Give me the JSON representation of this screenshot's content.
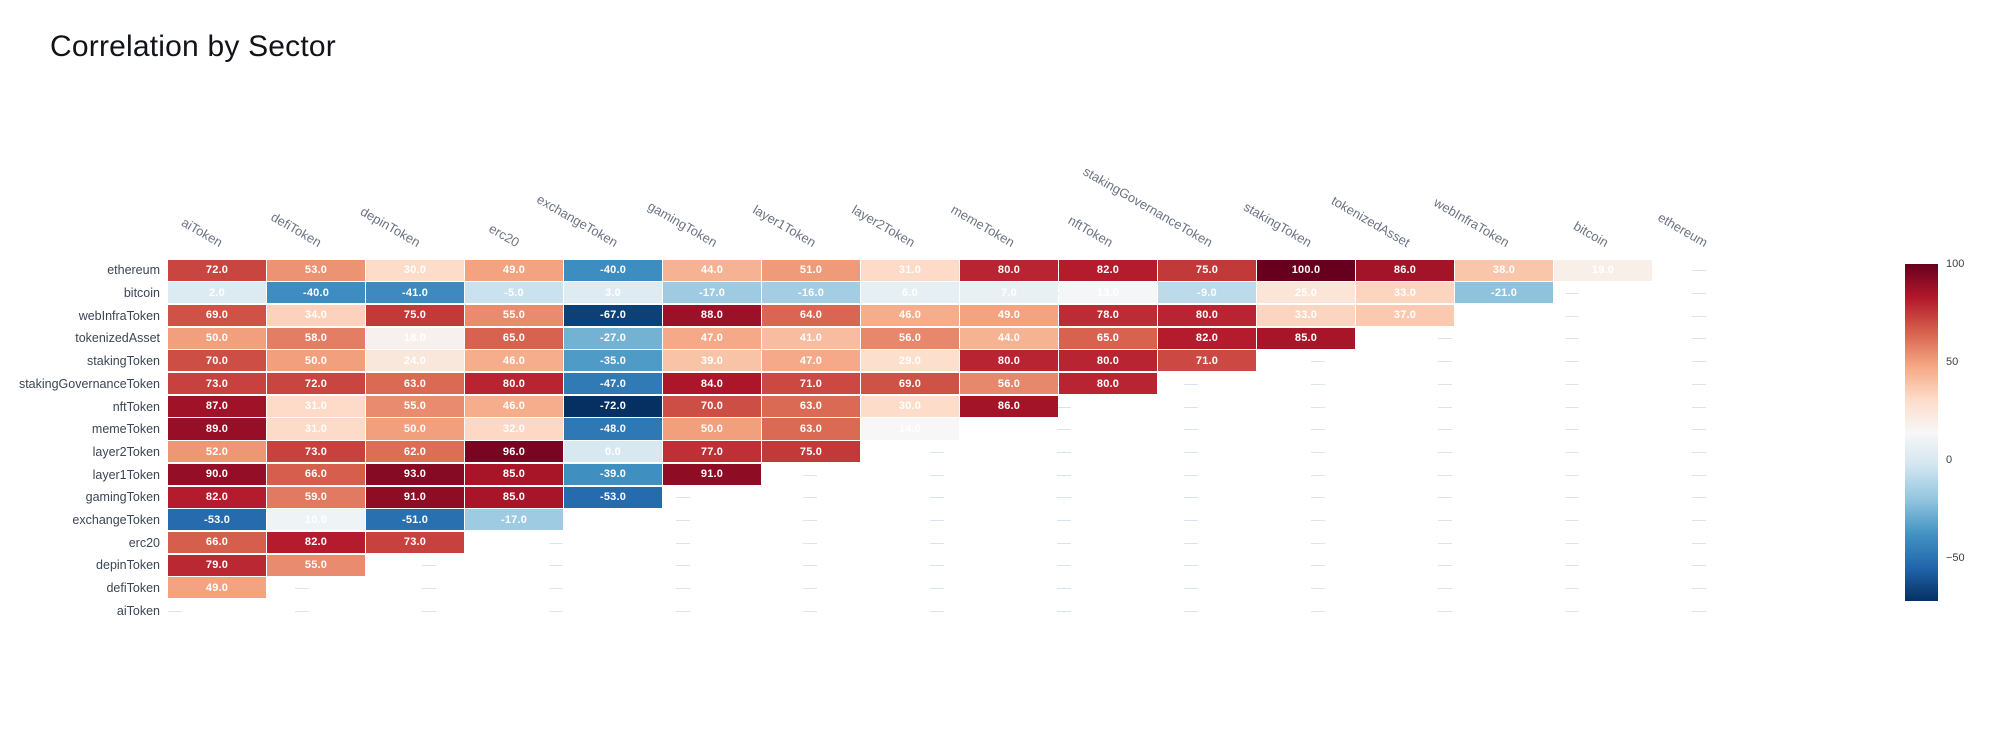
{
  "page": {
    "title": "Correlation by Sector"
  },
  "chart_data": {
    "type": "heatmap",
    "title": "Correlation by Sector",
    "xlabel": "",
    "ylabel": "",
    "legend_position": "right-colorbar",
    "grid": "dashed-row-lines",
    "x_categories": [
      "aiToken",
      "defiToken",
      "depinToken",
      "erc20",
      "exchangeToken",
      "gamingToken",
      "layer1Token",
      "layer2Token",
      "memeToken",
      "nftToken",
      "stakingGovernanceToken",
      "stakingToken",
      "tokenizedAsset",
      "webInfraToken",
      "bitcoin",
      "ethereum"
    ],
    "y_categories": [
      "ethereum",
      "bitcoin",
      "webInfraToken",
      "tokenizedAsset",
      "stakingToken",
      "stakingGovernanceToken",
      "nftToken",
      "memeToken",
      "layer2Token",
      "layer1Token",
      "gamingToken",
      "exchangeToken",
      "erc20",
      "depinToken",
      "defiToken",
      "aiToken"
    ],
    "rows": [
      {
        "label": "ethereum",
        "values": [
          72,
          53,
          30,
          49,
          -40,
          44,
          51,
          31,
          80,
          82,
          75,
          100,
          86,
          38,
          19
        ]
      },
      {
        "label": "bitcoin",
        "values": [
          2,
          -40,
          -41,
          -5,
          3,
          -17,
          -16,
          6,
          7,
          13,
          -9,
          25,
          33,
          -21
        ]
      },
      {
        "label": "webInfraToken",
        "values": [
          69,
          34,
          75,
          55,
          -67,
          88,
          64,
          46,
          49,
          78,
          80,
          33,
          37
        ]
      },
      {
        "label": "tokenizedAsset",
        "values": [
          50,
          58,
          18,
          65,
          -27,
          47,
          41,
          56,
          44,
          65,
          82,
          85
        ]
      },
      {
        "label": "stakingToken",
        "values": [
          70,
          50,
          24,
          46,
          -35,
          39,
          47,
          29,
          80,
          80,
          71
        ]
      },
      {
        "label": "stakingGovernanceToken",
        "values": [
          73,
          72,
          63,
          80,
          -47,
          84,
          71,
          69,
          56,
          80
        ]
      },
      {
        "label": "nftToken",
        "values": [
          87,
          31,
          55,
          46,
          -72,
          70,
          63,
          30,
          86
        ]
      },
      {
        "label": "memeToken",
        "values": [
          89,
          31,
          50,
          32,
          -48,
          50,
          63,
          14
        ]
      },
      {
        "label": "layer2Token",
        "values": [
          52,
          73,
          62,
          96,
          0,
          77,
          75
        ]
      },
      {
        "label": "layer1Token",
        "values": [
          90,
          66,
          93,
          85,
          -39,
          91
        ]
      },
      {
        "label": "gamingToken",
        "values": [
          82,
          59,
          91,
          85,
          -53
        ]
      },
      {
        "label": "exchangeToken",
        "values": [
          -53,
          10,
          -51,
          -17
        ]
      },
      {
        "label": "erc20",
        "values": [
          66,
          82,
          73
        ]
      },
      {
        "label": "depinToken",
        "values": [
          79,
          55
        ]
      },
      {
        "label": "defiToken",
        "values": [
          49
        ]
      },
      {
        "label": "aiToken",
        "values": []
      }
    ],
    "zmin": -72,
    "zmax": 100,
    "value_decimals": 1,
    "cell_text_color": "#ffffff",
    "colorscale_stops": [
      "#053061",
      "#2166ac",
      "#4393c3",
      "#92c5de",
      "#d1e5f0",
      "#f7f7f7",
      "#fddbc7",
      "#f4a582",
      "#d6604d",
      "#b2182b",
      "#67001f"
    ],
    "colorbar": {
      "ticks": [
        100,
        50,
        0,
        -50
      ],
      "tick_labels": [
        "100",
        "50",
        "0",
        "−50"
      ]
    }
  }
}
